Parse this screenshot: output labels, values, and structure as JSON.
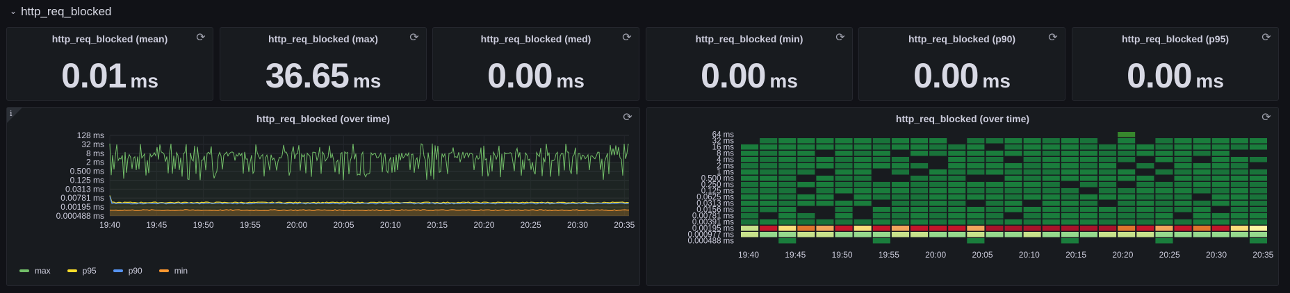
{
  "row": {
    "title": "http_req_blocked"
  },
  "stats": [
    {
      "title": "http_req_blocked (mean)",
      "value": "0.01",
      "unit": "ms"
    },
    {
      "title": "http_req_blocked (max)",
      "value": "36.65",
      "unit": "ms"
    },
    {
      "title": "http_req_blocked (med)",
      "value": "0.00",
      "unit": "ms"
    },
    {
      "title": "http_req_blocked (min)",
      "value": "0.00",
      "unit": "ms"
    },
    {
      "title": "http_req_blocked (p90)",
      "value": "0.00",
      "unit": "ms"
    },
    {
      "title": "http_req_blocked (p95)",
      "value": "0.00",
      "unit": "ms"
    }
  ],
  "timeseries": {
    "title": "http_req_blocked (over time)",
    "info_icon": "i"
  },
  "heatmap": {
    "title": "http_req_blocked (over time)"
  },
  "icons": {
    "refresh": "refresh-icon",
    "chevron": "chevron-down-icon",
    "info": "info-icon"
  },
  "chart_data": [
    {
      "type": "line",
      "title": "http_req_blocked (over time)",
      "y_scale": "log2",
      "y_ticks": [
        "128 ms",
        "32 ms",
        "8 ms",
        "2 ms",
        "0.500 ms",
        "0.125 ms",
        "0.0313 ms",
        "0.00781 ms",
        "0.00195 ms",
        "0.000488 ms"
      ],
      "x_ticks": [
        "19:40",
        "19:45",
        "19:50",
        "19:55",
        "20:00",
        "20:05",
        "20:10",
        "20:15",
        "20:20",
        "20:25",
        "20:30",
        "20:35"
      ],
      "series": [
        {
          "name": "max",
          "color": "#73bf69",
          "approx_level_ms": "0.125–32 (fluctuating, mostly ~4–8 ms)"
        },
        {
          "name": "p95",
          "color": "#fade2a",
          "approx_level_ms": 0.0039
        },
        {
          "name": "p90",
          "color": "#5794f2",
          "approx_level_ms": 0.0034
        },
        {
          "name": "min",
          "color": "#ff9830",
          "approx_level_ms": 0.0012
        }
      ],
      "legend": [
        "max",
        "p95",
        "p90",
        "min"
      ],
      "legend_placement": "bottom"
    },
    {
      "type": "heatmap",
      "title": "http_req_blocked (over time)",
      "y_buckets": [
        "64 ms",
        "32 ms",
        "16 ms",
        "8 ms",
        "4 ms",
        "2 ms",
        "1 ms",
        "0.500 ms",
        "0.250 ms",
        "0.125 ms",
        "0.0625 ms",
        "0.0313 ms",
        "0.0156 ms",
        "0.00781 ms",
        "0.00391 ms",
        "0.00195 ms",
        "0.000977 ms",
        "0.000488 ms"
      ],
      "x_ticks": [
        "19:40",
        "19:45",
        "19:50",
        "19:55",
        "20:00",
        "20:05",
        "20:10",
        "20:15",
        "20:20",
        "20:25",
        "20:30",
        "20:35"
      ],
      "colors": {
        "low": "#1a7d3c",
        "mid": "#f2a55d",
        "high": "#c4162a",
        "light": "#c8e28b"
      }
    }
  ]
}
